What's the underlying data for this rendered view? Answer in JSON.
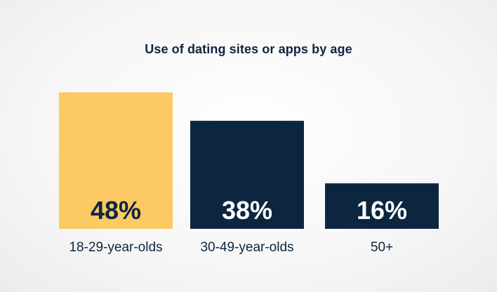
{
  "chart_data": {
    "type": "bar",
    "title": "Use of dating sites or apps by age",
    "categories": [
      "18-29-year-olds",
      "30-49-year-olds",
      "50+"
    ],
    "values": [
      48,
      38,
      16
    ],
    "value_labels": [
      "48%",
      "38%",
      "16%"
    ],
    "unit": "%",
    "ylim": [
      0,
      100
    ],
    "xlabel": "",
    "ylabel": "",
    "grid": false,
    "legend": "none",
    "colors": {
      "bars": [
        "#fdc962",
        "#0d2640",
        "#0d2640"
      ],
      "value_text": [
        "#0d2640",
        "#ffffff",
        "#ffffff"
      ],
      "title": "#0d2640",
      "category_text": "#0d2640"
    }
  }
}
